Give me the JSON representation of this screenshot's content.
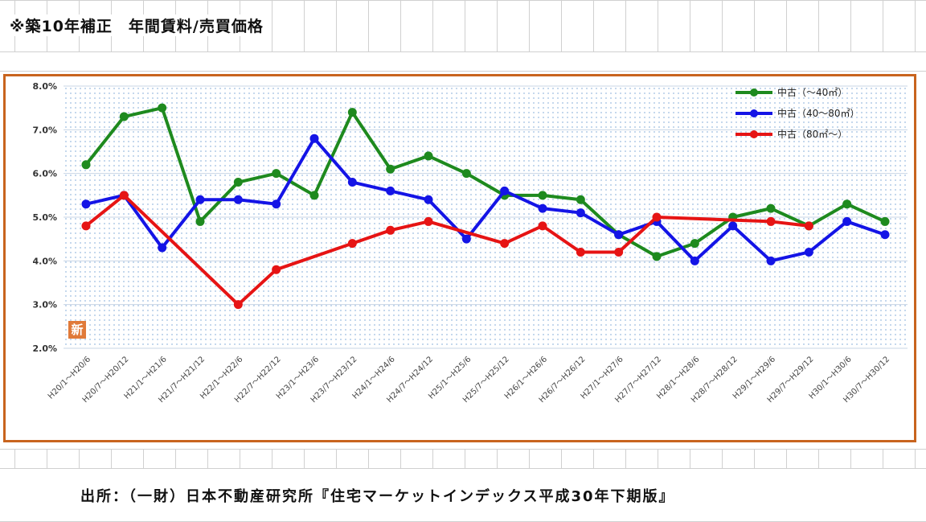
{
  "header": {
    "title": "※築10年補正　年間賃料/売買価格"
  },
  "footer": {
    "source": "出所：（一財）日本不動産研究所『住宅マーケットインデックス平成30年下期版』"
  },
  "badge": {
    "label": "新"
  },
  "colors": {
    "frame": "#c8641e",
    "series_small": "#1e8a1e",
    "series_mid": "#1414e6",
    "series_large": "#e61414",
    "plot_dots": "#9bbbe0"
  },
  "chart_data": {
    "type": "line",
    "title": "",
    "xlabel": "",
    "ylabel": "",
    "ylim": [
      0.02,
      0.08
    ],
    "y_ticks": [
      "8.0%",
      "7.0%",
      "6.0%",
      "5.0%",
      "4.0%",
      "3.0%",
      "2.0%"
    ],
    "y_tick_values": [
      0.08,
      0.07,
      0.06,
      0.05,
      0.04,
      0.03,
      0.02
    ],
    "grid": true,
    "legend_position": "top-right",
    "categories": [
      "H20/1～H20/6",
      "H20/7～H20/12",
      "H21/1～H21/6",
      "H21/7～H21/12",
      "H22/1～H22/6",
      "H22/7～H22/12",
      "H23/1～H23/6",
      "H23/7～H23/12",
      "H24/1～H24/6",
      "H24/7～H24/12",
      "H25/1～H25/6",
      "H25/7～H25/12",
      "H26/1～H26/6",
      "H26/7～H26/12",
      "H27/1～H27/6",
      "H27/7～H27/12",
      "H28/1～H28/6",
      "H28/7～H28/12",
      "H29/1～H29/6",
      "H29/7～H29/12",
      "H30/1～H30/6",
      "H30/7～H30/12"
    ],
    "series": [
      {
        "name": "中古（～40㎡）",
        "color": "#1e8a1e",
        "values": [
          0.062,
          0.073,
          0.075,
          0.049,
          0.058,
          0.06,
          0.055,
          0.074,
          0.061,
          0.064,
          0.06,
          0.055,
          0.055,
          0.054,
          0.046,
          0.041,
          0.044,
          0.05,
          0.052,
          0.048,
          0.053,
          0.049
        ]
      },
      {
        "name": "中古（40～80㎡）",
        "color": "#1414e6",
        "values": [
          0.053,
          0.055,
          0.043,
          0.054,
          0.054,
          0.053,
          0.068,
          0.058,
          0.056,
          0.054,
          0.045,
          0.056,
          0.052,
          0.051,
          0.046,
          0.049,
          0.04,
          0.048,
          0.04,
          0.042,
          0.049,
          0.046
        ]
      },
      {
        "name": "中古（80㎡～）",
        "color": "#e61414",
        "values": [
          0.048,
          0.055,
          null,
          null,
          0.03,
          0.038,
          null,
          0.044,
          0.047,
          0.049,
          null,
          0.044,
          0.048,
          0.042,
          0.042,
          0.05,
          null,
          null,
          0.049,
          0.048,
          null,
          null
        ]
      }
    ]
  }
}
